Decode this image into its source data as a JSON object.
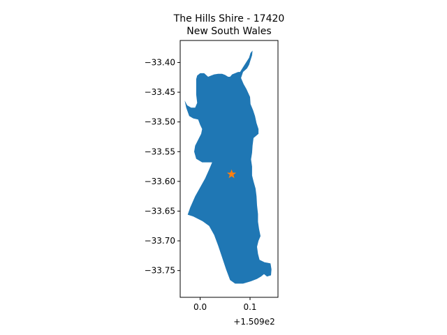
{
  "chart_data": {
    "type": "map",
    "title": [
      "The Hills Shire - 17420",
      "New South Wales"
    ],
    "xlabel": "",
    "ylabel": "",
    "x_offset_label": "+1.509e2",
    "x_offset": 150.9,
    "xlim": [
      -0.04,
      0.156
    ],
    "ylim": [
      -33.795,
      -33.363
    ],
    "x_ticks": [
      0.0,
      0.1
    ],
    "x_tick_labels": [
      "0.0",
      "0.1"
    ],
    "y_ticks": [
      -33.4,
      -33.45,
      -33.5,
      -33.55,
      -33.6,
      -33.65,
      -33.7,
      -33.75
    ],
    "y_tick_labels": [
      "−33.40",
      "−33.45",
      "−33.50",
      "−33.55",
      "−33.60",
      "−33.65",
      "−33.70",
      "−33.75"
    ],
    "region_color": "#1f77b4",
    "marker_color": "#ff7f0e",
    "marker": {
      "shape": "star",
      "x": 0.063,
      "y": -33.588
    },
    "region_outline": [
      [
        0.105,
        -33.38
      ],
      [
        0.104,
        -33.388
      ],
      [
        0.101,
        -33.396
      ],
      [
        0.098,
        -33.404
      ],
      [
        0.094,
        -33.41
      ],
      [
        0.086,
        -33.416
      ],
      [
        0.082,
        -33.426
      ],
      [
        0.087,
        -33.436
      ],
      [
        0.093,
        -33.445
      ],
      [
        0.1,
        -33.458
      ],
      [
        0.101,
        -33.47
      ],
      [
        0.106,
        -33.48
      ],
      [
        0.11,
        -33.49
      ],
      [
        0.113,
        -33.502
      ],
      [
        0.117,
        -33.512
      ],
      [
        0.117,
        -33.52
      ],
      [
        0.107,
        -33.527
      ],
      [
        0.105,
        -33.54
      ],
      [
        0.104,
        -33.552
      ],
      [
        0.102,
        -33.563
      ],
      [
        0.104,
        -33.575
      ],
      [
        0.104,
        -33.59
      ],
      [
        0.107,
        -33.6
      ],
      [
        0.111,
        -33.612
      ],
      [
        0.113,
        -33.625
      ],
      [
        0.114,
        -33.64
      ],
      [
        0.116,
        -33.655
      ],
      [
        0.116,
        -33.668
      ],
      [
        0.118,
        -33.68
      ],
      [
        0.121,
        -33.692
      ],
      [
        0.117,
        -33.7
      ],
      [
        0.114,
        -33.71
      ],
      [
        0.116,
        -33.722
      ],
      [
        0.119,
        -33.732
      ],
      [
        0.129,
        -33.736
      ],
      [
        0.141,
        -33.738
      ],
      [
        0.143,
        -33.748
      ],
      [
        0.142,
        -33.758
      ],
      [
        0.134,
        -33.76
      ],
      [
        0.128,
        -33.756
      ],
      [
        0.122,
        -33.76
      ],
      [
        0.114,
        -33.764
      ],
      [
        0.102,
        -33.768
      ],
      [
        0.086,
        -33.772
      ],
      [
        0.07,
        -33.772
      ],
      [
        0.06,
        -33.766
      ],
      [
        0.052,
        -33.748
      ],
      [
        0.044,
        -33.728
      ],
      [
        0.036,
        -33.708
      ],
      [
        0.028,
        -33.69
      ],
      [
        0.018,
        -33.675
      ],
      [
        0.005,
        -33.667
      ],
      [
        -0.014,
        -33.659
      ],
      [
        -0.025,
        -33.656
      ],
      [
        -0.02,
        -33.644
      ],
      [
        -0.01,
        -33.625
      ],
      [
        0.0,
        -33.61
      ],
      [
        0.01,
        -33.595
      ],
      [
        0.018,
        -33.58
      ],
      [
        0.024,
        -33.568
      ],
      [
        0.016,
        -33.568
      ],
      [
        0.004,
        -33.568
      ],
      [
        -0.008,
        -33.562
      ],
      [
        -0.012,
        -33.55
      ],
      [
        -0.01,
        -33.54
      ],
      [
        -0.004,
        -33.53
      ],
      [
        0.002,
        -33.52
      ],
      [
        0.004,
        -33.512
      ],
      [
        0.0,
        -33.505
      ],
      [
        -0.004,
        -33.496
      ],
      [
        -0.014,
        -33.494
      ],
      [
        -0.022,
        -33.49
      ],
      [
        -0.028,
        -33.476
      ],
      [
        -0.031,
        -33.464
      ],
      [
        -0.026,
        -33.472
      ],
      [
        -0.018,
        -33.476
      ],
      [
        -0.01,
        -33.476
      ],
      [
        -0.006,
        -33.468
      ],
      [
        -0.008,
        -33.454
      ],
      [
        -0.008,
        -33.44
      ],
      [
        -0.008,
        -33.428
      ],
      [
        -0.006,
        -33.422
      ],
      [
        0.0,
        -33.418
      ],
      [
        0.008,
        -33.418
      ],
      [
        0.016,
        -33.424
      ],
      [
        0.022,
        -33.422
      ],
      [
        0.028,
        -33.42
      ],
      [
        0.036,
        -33.419
      ],
      [
        0.044,
        -33.419
      ],
      [
        0.05,
        -33.421
      ],
      [
        0.056,
        -33.424
      ],
      [
        0.06,
        -33.424
      ],
      [
        0.064,
        -33.42
      ],
      [
        0.07,
        -33.418
      ],
      [
        0.076,
        -33.416
      ],
      [
        0.08,
        -33.416
      ],
      [
        0.086,
        -33.408
      ],
      [
        0.092,
        -33.4
      ],
      [
        0.098,
        -33.392
      ],
      [
        0.101,
        -33.384
      ]
    ]
  }
}
